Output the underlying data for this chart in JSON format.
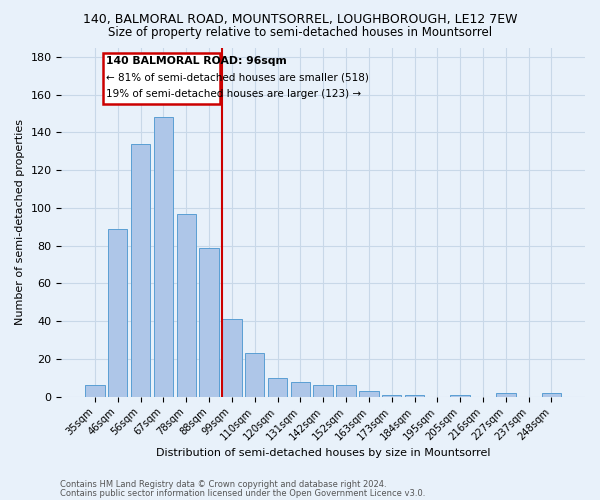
{
  "title": "140, BALMORAL ROAD, MOUNTSORREL, LOUGHBOROUGH, LE12 7EW",
  "subtitle": "Size of property relative to semi-detached houses in Mountsorrel",
  "xlabel": "Distribution of semi-detached houses by size in Mountsorrel",
  "ylabel": "Number of semi-detached properties",
  "footnote1": "Contains HM Land Registry data © Crown copyright and database right 2024.",
  "footnote2": "Contains public sector information licensed under the Open Government Licence v3.0.",
  "bar_labels": [
    "35sqm",
    "46sqm",
    "56sqm",
    "67sqm",
    "78sqm",
    "88sqm",
    "99sqm",
    "110sqm",
    "120sqm",
    "131sqm",
    "142sqm",
    "152sqm",
    "163sqm",
    "173sqm",
    "184sqm",
    "195sqm",
    "205sqm",
    "216sqm",
    "227sqm",
    "237sqm",
    "248sqm"
  ],
  "bar_values": [
    6,
    89,
    134,
    148,
    97,
    79,
    41,
    23,
    10,
    8,
    6,
    6,
    3,
    1,
    1,
    0,
    1,
    0,
    2,
    0,
    2
  ],
  "bar_color": "#aec6e8",
  "bar_edge_color": "#5a9fd4",
  "annotation_text": "140 BALMORAL ROAD: 96sqm",
  "annotation_smaller": "← 81% of semi-detached houses are smaller (518)",
  "annotation_larger": "19% of semi-detached houses are larger (123) →",
  "annotation_box_color": "#ffffff",
  "annotation_box_edge": "#cc0000",
  "vline_color": "#cc0000",
  "vline_x": 5.57,
  "ylim": [
    0,
    185
  ],
  "yticks": [
    0,
    20,
    40,
    60,
    80,
    100,
    120,
    140,
    160,
    180
  ],
  "grid_color": "#c8d8e8",
  "bg_color": "#e8f1fa",
  "title_fontsize": 9,
  "subtitle_fontsize": 8.5
}
